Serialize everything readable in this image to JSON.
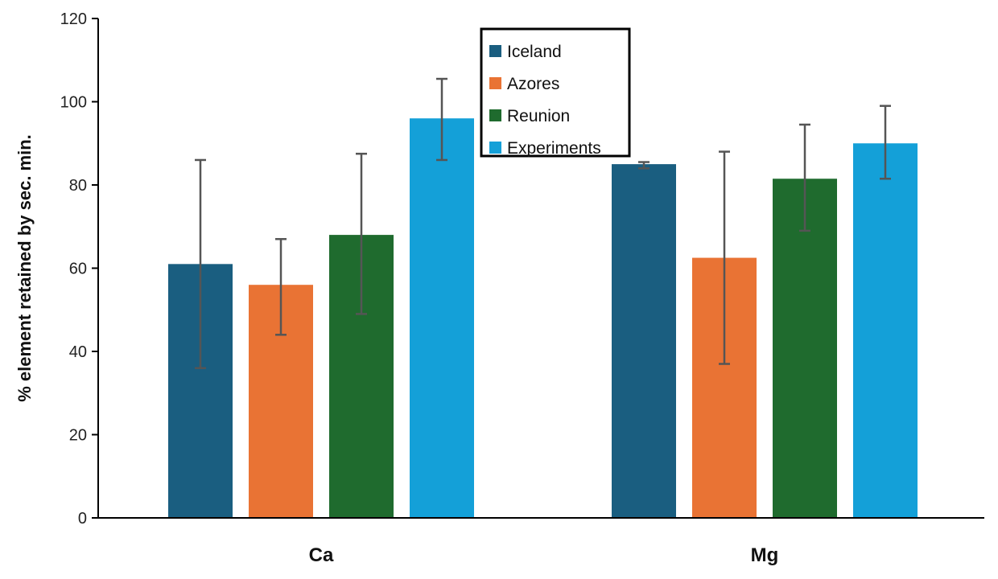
{
  "chart_data": {
    "type": "bar",
    "categories": [
      "Ca",
      "Mg"
    ],
    "series": [
      {
        "name": "Iceland",
        "color": "#1a5e80",
        "values": [
          61,
          85
        ],
        "error": [
          [
            36,
            86
          ],
          [
            84,
            85.5
          ]
        ]
      },
      {
        "name": "Azores",
        "color": "#e97334",
        "values": [
          56,
          62.5
        ],
        "error": [
          [
            44,
            67
          ],
          [
            37,
            88
          ]
        ]
      },
      {
        "name": "Reunion",
        "color": "#1f6b2e",
        "values": [
          68,
          81.5
        ],
        "error": [
          [
            49,
            87.5
          ],
          [
            69,
            94.5
          ]
        ]
      },
      {
        "name": "Experiments",
        "color": "#14a0d8",
        "values": [
          96,
          90
        ],
        "error": [
          [
            86,
            105.5
          ],
          [
            81.5,
            99
          ]
        ]
      }
    ],
    "ylabel": "% element retained by sec. min.",
    "xlabel": "",
    "ylim": [
      0,
      120
    ],
    "yticks": [
      "0",
      "20",
      "40",
      "60",
      "80",
      "100",
      "120"
    ],
    "legend_position": "top-center",
    "error_bar_color": "#555555",
    "grid": false
  }
}
